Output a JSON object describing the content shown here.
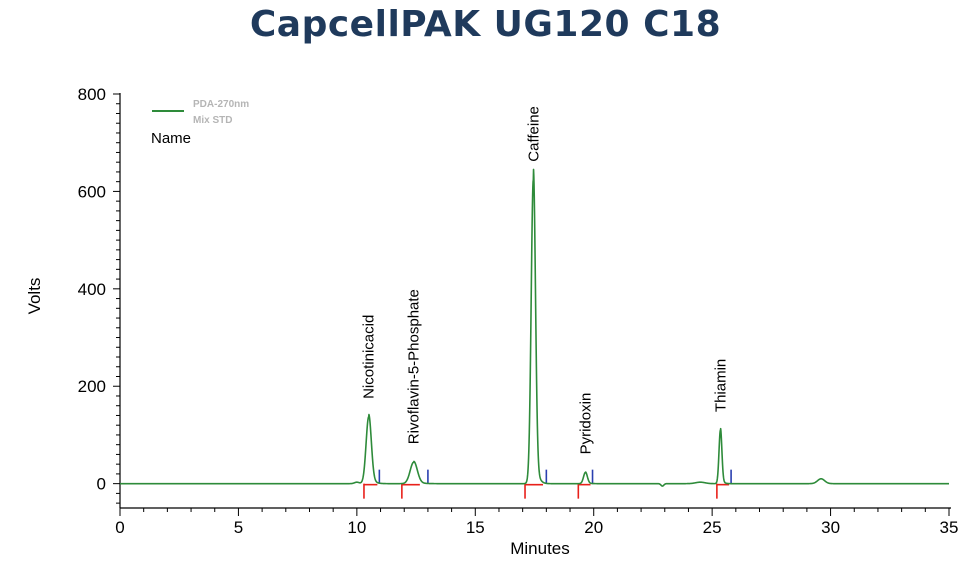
{
  "chart_data": {
    "type": "line",
    "title": "CapcellPAK UG120 C18",
    "xlabel": "Minutes",
    "ylabel": "Volts",
    "xlim": [
      0,
      35
    ],
    "ylim": [
      -50,
      800
    ],
    "x_ticks": [
      0,
      5,
      10,
      15,
      20,
      25,
      30,
      35
    ],
    "y_ticks": [
      0,
      200,
      400,
      600,
      800
    ],
    "legend": {
      "position": "top-left",
      "entries": [
        "PDA-270nm",
        "Mix  STD"
      ],
      "color": "#2e8b3a"
    },
    "legend_caption": "Name",
    "series": [
      {
        "name": "PDA-270nm Mix STD",
        "color": "#2e8b3a",
        "baseline": 0,
        "peaks": [
          {
            "label": "Nicotinicacid",
            "rt": 10.5,
            "height": 137,
            "width": 0.11,
            "start": 10.3,
            "end": 10.95
          },
          {
            "label": "Rivoflavin-5-Phosphate",
            "rt": 12.4,
            "height": 44,
            "width": 0.15,
            "start": 11.9,
            "end": 13.0
          },
          {
            "label": "Caffeine",
            "rt": 17.45,
            "height": 624,
            "width": 0.09,
            "start": 17.1,
            "end": 18.0
          },
          {
            "label": "Pyridoxin",
            "rt": 19.65,
            "height": 23,
            "width": 0.08,
            "start": 19.35,
            "end": 19.95
          },
          {
            "label": "Thiamin",
            "rt": 25.35,
            "height": 110,
            "width": 0.06,
            "start": 25.2,
            "end": 25.8
          }
        ],
        "minor_features": [
          {
            "rt": 10.0,
            "height": 3,
            "width": 0.1
          },
          {
            "rt": 22.9,
            "height": -5,
            "width": 0.06
          },
          {
            "rt": 24.5,
            "height": 3,
            "width": 0.2
          },
          {
            "rt": 29.6,
            "height": 10,
            "width": 0.15
          }
        ]
      }
    ]
  }
}
